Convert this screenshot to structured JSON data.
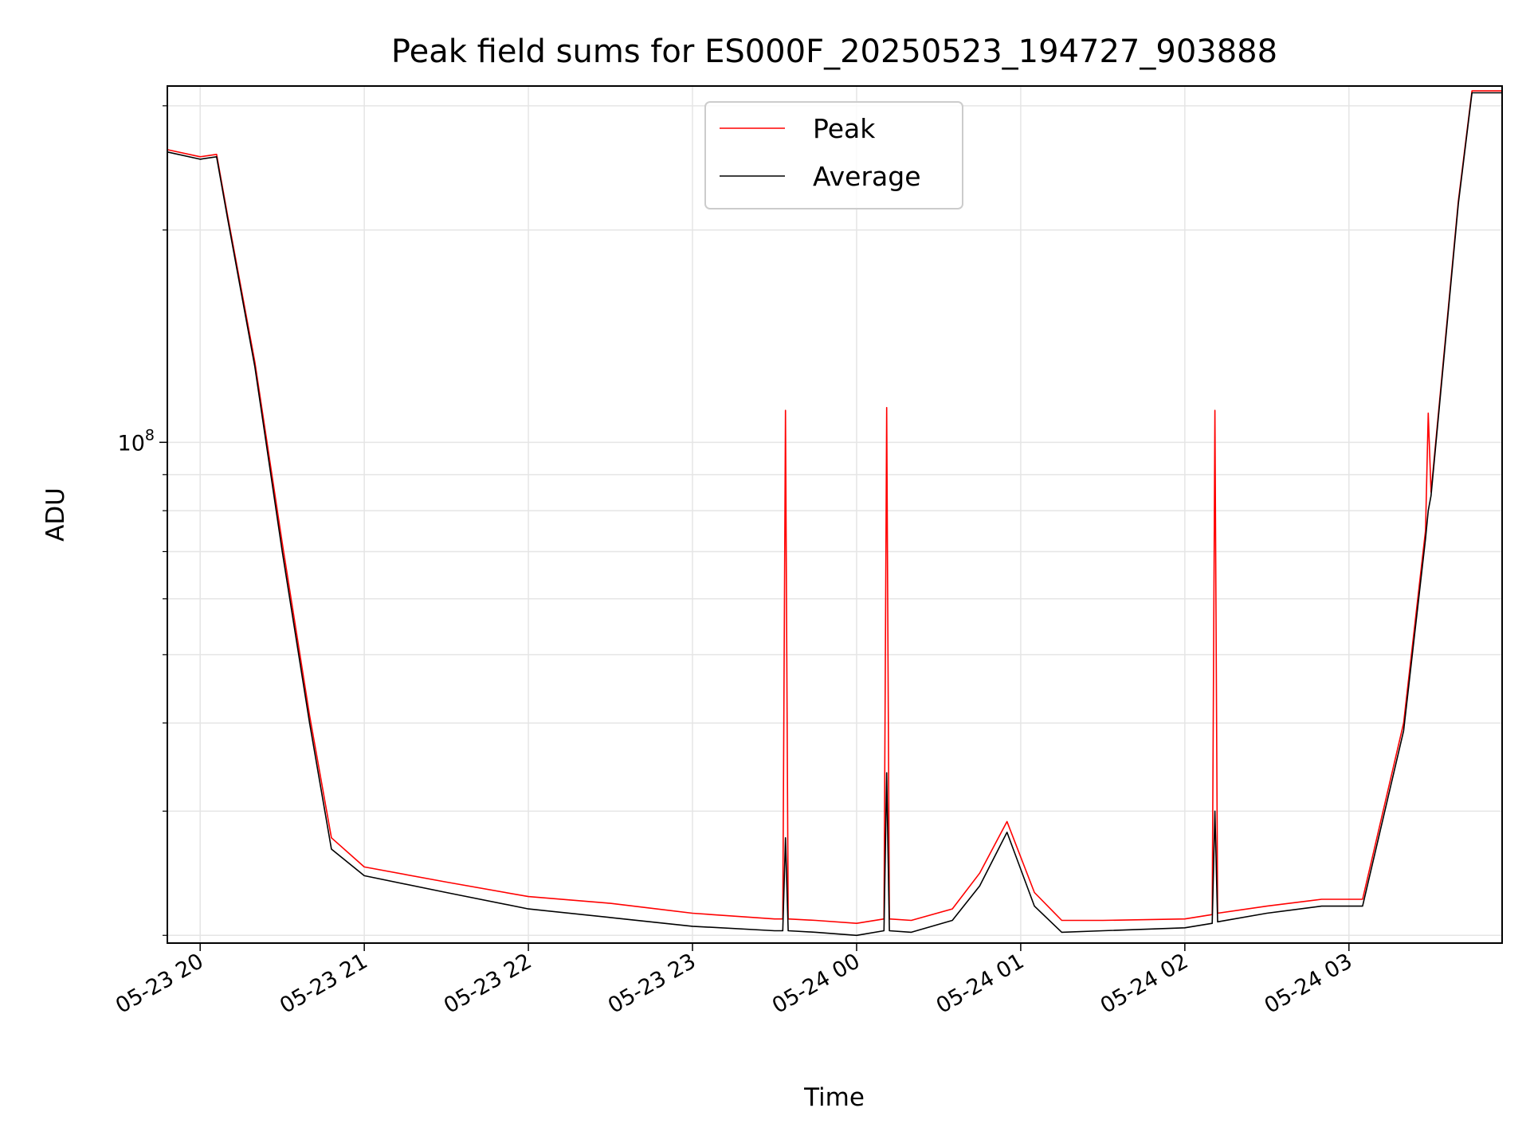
{
  "chart_data": {
    "type": "line",
    "title": "Peak field sums for ES000F_20250523_194727_903888",
    "xlabel": "Time",
    "ylabel": "ADU",
    "yscale": "log",
    "ylim": [
      19500000,
      320000000
    ],
    "xlim": [
      "05-23 19:48",
      "05-24 03:56"
    ],
    "grid": true,
    "legend_position": "top-center",
    "x_ticks": [
      "05-23 20",
      "05-23 21",
      "05-23 22",
      "05-23 23",
      "05-24 00",
      "05-24 01",
      "05-24 02",
      "05-24 03"
    ],
    "y_tick_major": {
      "base": "10",
      "exp": "8"
    },
    "colors": {
      "Peak": "#ff0000",
      "Average": "#000000"
    },
    "series": [
      {
        "name": "Peak",
        "x": [
          "05-23 19:48",
          "05-23 20:00",
          "05-23 20:06",
          "05-23 20:10",
          "05-23 20:20",
          "05-23 20:30",
          "05-23 20:40",
          "05-23 20:48",
          "05-23 21:00",
          "05-23 21:30",
          "05-23 22:00",
          "05-23 22:30",
          "05-23 23:00",
          "05-23 23:30",
          "05-23 23:33",
          "05-23 23:34",
          "05-23 23:35",
          "05-23 23:45",
          "05-24 00:00",
          "05-24 00:10",
          "05-24 00:11",
          "05-24 00:12",
          "05-24 00:20",
          "05-24 00:35",
          "05-24 00:45",
          "05-24 00:55",
          "05-24 01:05",
          "05-24 01:15",
          "05-24 01:30",
          "05-24 02:00",
          "05-24 02:10",
          "05-24 02:11",
          "05-24 02:12",
          "05-24 02:30",
          "05-24 02:50",
          "05-24 03:05",
          "05-24 03:20",
          "05-24 03:28",
          "05-24 03:29",
          "05-24 03:30",
          "05-24 03:40",
          "05-24 03:45",
          "05-24 03:56"
        ],
        "y": [
          260000000,
          254000000,
          256000000,
          210000000,
          130000000,
          72000000,
          41000000,
          27500000,
          25000000,
          23800000,
          22700000,
          22200000,
          21500000,
          21100000,
          21100000,
          111000000,
          21100000,
          21000000,
          20800000,
          21100000,
          112000000,
          21100000,
          21000000,
          21800000,
          24500000,
          29000000,
          23000000,
          21000000,
          21000000,
          21100000,
          21400000,
          111000000,
          21500000,
          22000000,
          22500000,
          22500000,
          40000000,
          75000000,
          110000000,
          85000000,
          220000000,
          315000000,
          315000000
        ]
      },
      {
        "name": "Average",
        "x": [
          "05-23 19:48",
          "05-23 20:00",
          "05-23 20:06",
          "05-23 20:10",
          "05-23 20:20",
          "05-23 20:30",
          "05-23 20:40",
          "05-23 20:48",
          "05-23 21:00",
          "05-23 21:30",
          "05-23 22:00",
          "05-23 22:30",
          "05-23 23:00",
          "05-23 23:30",
          "05-23 23:33",
          "05-23 23:34",
          "05-23 23:35",
          "05-23 23:45",
          "05-24 00:00",
          "05-24 00:10",
          "05-24 00:11",
          "05-24 00:12",
          "05-24 00:20",
          "05-24 00:35",
          "05-24 00:45",
          "05-24 00:55",
          "05-24 01:05",
          "05-24 01:15",
          "05-24 01:30",
          "05-24 02:00",
          "05-24 02:10",
          "05-24 02:11",
          "05-24 02:12",
          "05-24 02:30",
          "05-24 02:50",
          "05-24 03:05",
          "05-24 03:20",
          "05-24 03:28",
          "05-24 03:29",
          "05-24 03:30",
          "05-24 03:40",
          "05-24 03:45",
          "05-24 03:56"
        ],
        "y": [
          258000000,
          252000000,
          254000000,
          208000000,
          128000000,
          70000000,
          40000000,
          26500000,
          24300000,
          23000000,
          21800000,
          21200000,
          20600000,
          20300000,
          20300000,
          27500000,
          20300000,
          20200000,
          20000000,
          20300000,
          34000000,
          20300000,
          20200000,
          21000000,
          23500000,
          28000000,
          22000000,
          20200000,
          20300000,
          20500000,
          20800000,
          30000000,
          20900000,
          21500000,
          22000000,
          22000000,
          39000000,
          73000000,
          80000000,
          84000000,
          218000000,
          313000000,
          313000000
        ]
      }
    ]
  }
}
